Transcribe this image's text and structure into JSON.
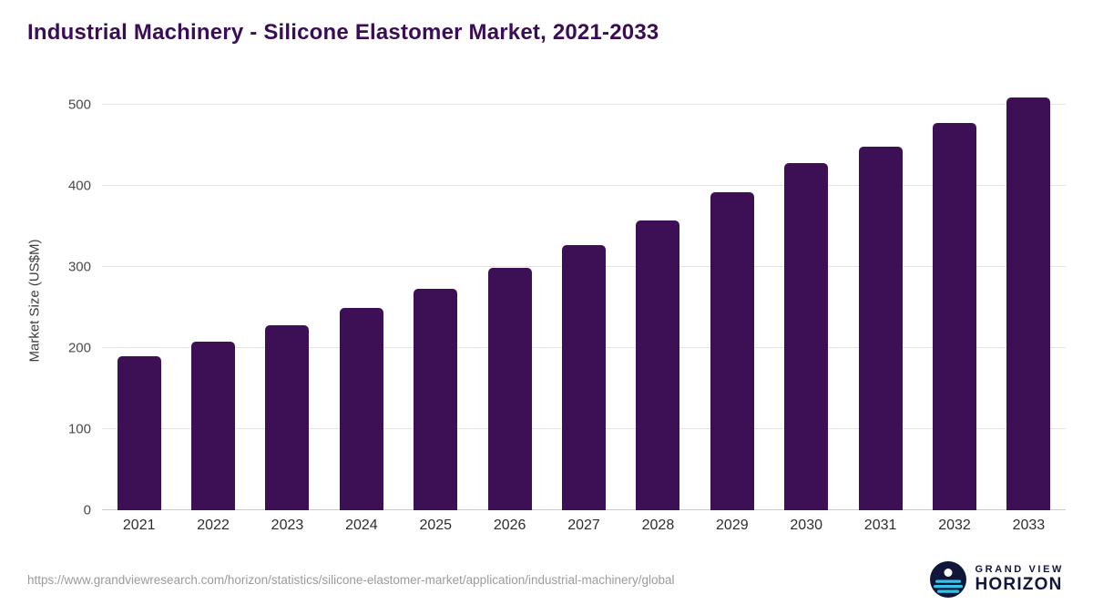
{
  "page": {
    "title": "Industrial Machinery - Silicone Elastomer Market, 2021-2033",
    "source_url": "https://www.grandviewresearch.com/horizon/statistics/silicone-elastomer-market/application/industrial-machinery/global",
    "brand": {
      "line1": "GRAND VIEW",
      "line2": "HORIZON",
      "logo_icon": "horizon-sun-icon",
      "logo_navy": "#10173a",
      "logo_cyan": "#35c4e8"
    }
  },
  "chart_data": {
    "type": "bar",
    "title": "Industrial Machinery - Silicone Elastomer Market, 2021-2033",
    "categories": [
      "2021",
      "2022",
      "2023",
      "2024",
      "2025",
      "2026",
      "2027",
      "2028",
      "2029",
      "2030",
      "2031",
      "2032",
      "2033"
    ],
    "values": [
      190,
      208,
      228,
      249,
      273,
      299,
      327,
      357,
      392,
      428,
      448,
      477,
      509
    ],
    "xlabel": "",
    "ylabel": "Market Size (US$M)",
    "yticks": [
      0,
      100,
      200,
      300,
      400,
      500
    ],
    "ylim": [
      0,
      522
    ],
    "grid": "horizontal",
    "legend": "none",
    "bar_color": "#3d1055",
    "title_color": "#3a0d54"
  }
}
